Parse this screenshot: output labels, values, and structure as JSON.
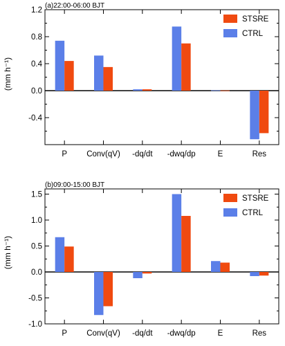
{
  "colors": {
    "CTRL": "#5B7FE8",
    "STSRE": "#F04A10"
  },
  "chart_data": [
    {
      "type": "bar",
      "title": "(a)22:00-06:00 BJT",
      "ylabel": "(mm h⁻¹)",
      "categories": [
        "P",
        "Conv(qV)",
        "-dq/dt",
        "-dwq/dp",
        "E",
        "Res"
      ],
      "ylim": [
        -0.8,
        1.2
      ],
      "yticks": [
        -0.4,
        0.0,
        0.4,
        0.8,
        1.2
      ],
      "ytick_labels": [
        "-0.4",
        "0.0",
        "0.4",
        "0.8",
        "1.2"
      ],
      "series": [
        {
          "name": "CTRL",
          "values": [
            0.74,
            0.52,
            0.02,
            0.95,
            0.005,
            -0.72
          ]
        },
        {
          "name": "STSRE",
          "values": [
            0.44,
            0.35,
            0.02,
            0.7,
            0.003,
            -0.63
          ]
        }
      ],
      "legend": [
        "STSRE",
        "CTRL"
      ],
      "legend_position": "top-right",
      "zero_line": true
    },
    {
      "type": "bar",
      "title": "(b)09:00-15:00 BJT",
      "ylabel": "(mm h⁻¹)",
      "categories": [
        "P",
        "Conv(qV)",
        "-dq/dt",
        "-dwq/dp",
        "E",
        "Res"
      ],
      "ylim": [
        -1.0,
        1.6
      ],
      "yticks": [
        -1.0,
        -0.5,
        0.0,
        0.5,
        1.0,
        1.5
      ],
      "ytick_labels": [
        "-1.0",
        "-0.5",
        "0.0",
        "0.5",
        "1.0",
        "1.5"
      ],
      "series": [
        {
          "name": "CTRL",
          "values": [
            0.67,
            -0.83,
            -0.12,
            1.5,
            0.21,
            -0.08
          ]
        },
        {
          "name": "STSRE",
          "values": [
            0.49,
            -0.66,
            -0.03,
            1.08,
            0.18,
            -0.07
          ]
        }
      ],
      "legend": [
        "STSRE",
        "CTRL"
      ],
      "legend_position": "top-right",
      "zero_line": true
    }
  ]
}
